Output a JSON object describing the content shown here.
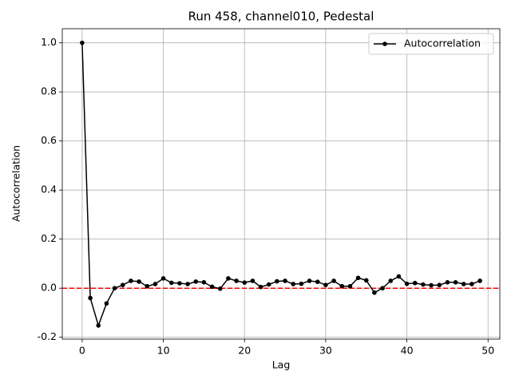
{
  "chart_data": {
    "type": "line",
    "title": "Run 458, channel010, Pedestal",
    "x_label": "Lag",
    "y_label": "Autocorrelation",
    "x": [
      0,
      1,
      2,
      3,
      4,
      5,
      6,
      7,
      8,
      9,
      10,
      11,
      12,
      13,
      14,
      15,
      16,
      17,
      18,
      19,
      20,
      21,
      22,
      23,
      24,
      25,
      26,
      27,
      28,
      29,
      30,
      31,
      32,
      33,
      34,
      35,
      36,
      37,
      38,
      39,
      40,
      41,
      42,
      43,
      44,
      45,
      46,
      47,
      48,
      49
    ],
    "series": [
      {
        "name": "Autocorrelation",
        "color": "#000000",
        "values": [
          1.0,
          -0.04,
          -0.152,
          -0.062,
          0.0,
          0.013,
          0.03,
          0.027,
          0.008,
          0.017,
          0.04,
          0.022,
          0.02,
          0.017,
          0.027,
          0.024,
          0.006,
          -0.002,
          0.04,
          0.03,
          0.023,
          0.03,
          0.005,
          0.015,
          0.028,
          0.03,
          0.017,
          0.018,
          0.03,
          0.026,
          0.013,
          0.03,
          0.008,
          0.008,
          0.042,
          0.032,
          -0.018,
          0.0,
          0.03,
          0.048,
          0.018,
          0.021,
          0.015,
          0.012,
          0.013,
          0.024,
          0.024,
          0.017,
          0.017,
          0.03
        ]
      }
    ],
    "hline": {
      "y": 0,
      "color": "#ff0000",
      "style": "dashed"
    },
    "xlim": [
      -2.45,
      51.45
    ],
    "xticks": [
      0,
      10,
      20,
      30,
      40,
      50
    ],
    "ylim": [
      -0.2075,
      1.0575
    ],
    "yticks": [
      {
        "value": -0.2,
        "label": "-0.2"
      },
      {
        "value": 0,
        "label": "0.0"
      },
      {
        "value": 0.2,
        "label": "0.2"
      },
      {
        "value": 0.4,
        "label": "0.4"
      },
      {
        "value": 0.6,
        "label": "0.6"
      },
      {
        "value": 0.8,
        "label": "0.8"
      },
      {
        "value": 1.0,
        "label": "1.0"
      }
    ],
    "grid": true,
    "legend": "upper right"
  }
}
